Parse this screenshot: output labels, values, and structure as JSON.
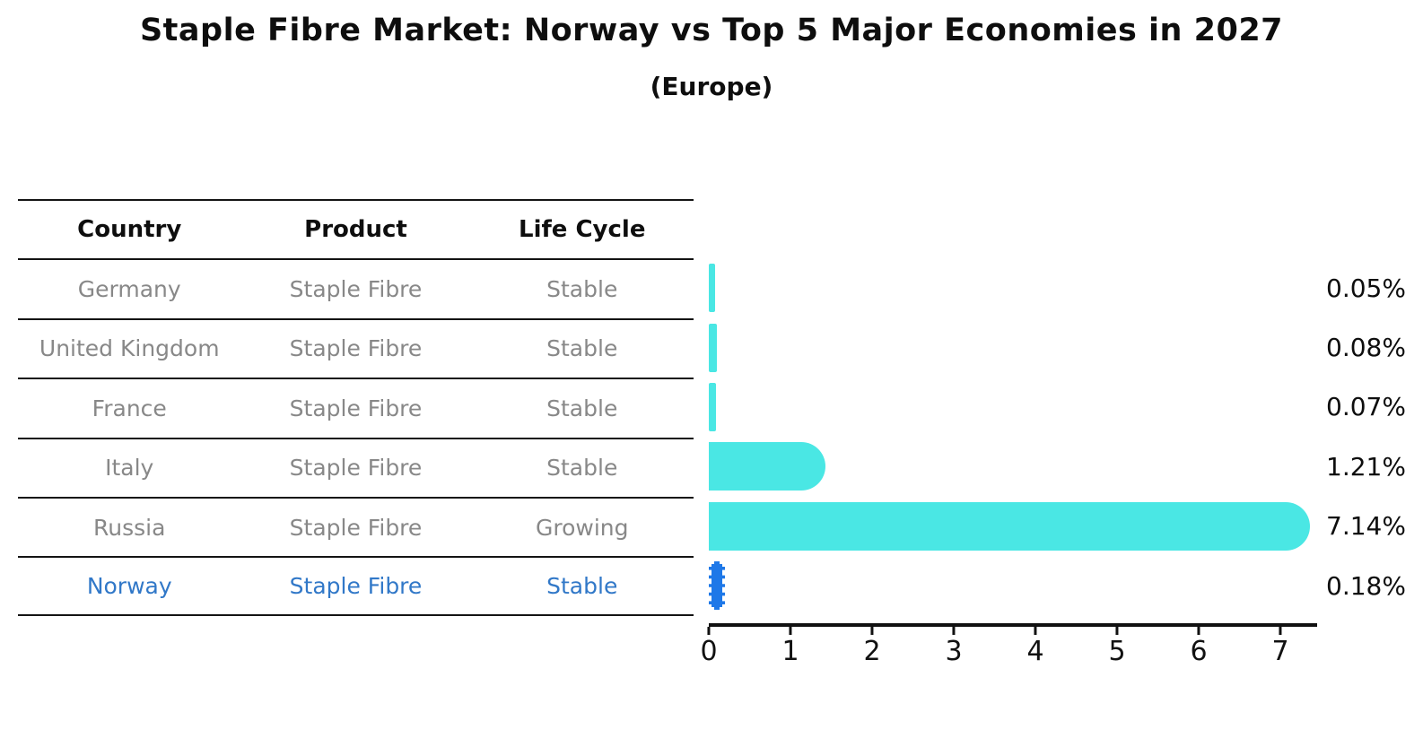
{
  "title": "Staple Fibre Market: Norway vs Top 5 Major Economies in 2027",
  "subtitle": "(Europe)",
  "table": {
    "headers": [
      "Country",
      "Product",
      "Life Cycle"
    ],
    "rows": [
      {
        "country": "Germany",
        "product": "Staple Fibre",
        "life_cycle": "Stable",
        "highlight": false
      },
      {
        "country": "United Kingdom",
        "product": "Staple Fibre",
        "life_cycle": "Stable",
        "highlight": false
      },
      {
        "country": "France",
        "product": "Staple Fibre",
        "life_cycle": "Stable",
        "highlight": false
      },
      {
        "country": "Italy",
        "product": "Staple Fibre",
        "life_cycle": "Stable",
        "highlight": false
      },
      {
        "country": "Russia",
        "product": "Staple Fibre",
        "life_cycle": "Growing",
        "highlight": false
      },
      {
        "country": "Norway",
        "product": "Staple Fibre",
        "life_cycle": "Stable",
        "highlight": true
      }
    ]
  },
  "chart_data": {
    "type": "bar",
    "orientation": "horizontal",
    "title": "Staple Fibre Market: Norway vs Top 5 Major Economies in 2027",
    "subtitle": "(Europe)",
    "categories": [
      "Germany",
      "United Kingdom",
      "France",
      "Italy",
      "Russia",
      "Norway"
    ],
    "values": [
      0.05,
      0.08,
      0.07,
      1.21,
      7.14,
      0.18
    ],
    "labels": [
      "0.05%",
      "0.08%",
      "0.07%",
      "1.21%",
      "7.14%",
      "0.18%"
    ],
    "x_ticks": [
      0,
      1,
      2,
      3,
      4,
      5,
      6,
      7
    ],
    "xlim": [
      0,
      7.45
    ],
    "grid": false,
    "legend": "none",
    "bar_color": "#4AE7E4",
    "highlight_color": "#1E78E8",
    "highlight_index": 5
  },
  "colors": {
    "highlight_text": "#3178C8",
    "table_text": "#888888",
    "axis": "#111111"
  }
}
